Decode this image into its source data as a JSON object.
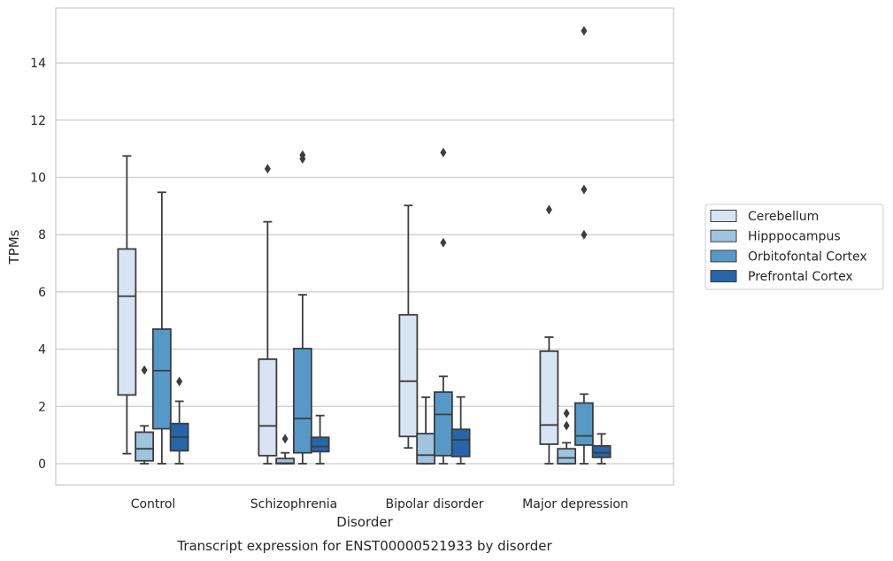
{
  "chart_data": {
    "type": "boxplot",
    "title": "",
    "caption": "Transcript expression for ENST00000521933 by disorder",
    "xlabel": "Disorder",
    "ylabel": "TPMs",
    "ylim": [
      -0.75,
      15.9
    ],
    "yticks": [
      0,
      2,
      4,
      6,
      8,
      10,
      12,
      14
    ],
    "grid": "horizontal",
    "legend_position": "right",
    "categories": [
      "Control",
      "Schizophrenia",
      "Bipolar disorder",
      "Major depression"
    ],
    "series": [
      {
        "name": "Cerebellum",
        "color": "#d6e4f3",
        "boxes": [
          {
            "whislo": 0.35,
            "q1": 2.4,
            "med": 5.85,
            "q3": 7.5,
            "whishi": 10.75,
            "fliers": []
          },
          {
            "whislo": 0.0,
            "q1": 0.28,
            "med": 1.32,
            "q3": 3.65,
            "whishi": 8.45,
            "fliers": [
              10.3
            ]
          },
          {
            "whislo": 0.55,
            "q1": 0.95,
            "med": 2.88,
            "q3": 5.2,
            "whishi": 9.02,
            "fliers": []
          },
          {
            "whislo": 0.0,
            "q1": 0.68,
            "med": 1.35,
            "q3": 3.93,
            "whishi": 4.42,
            "fliers": [
              8.87
            ]
          }
        ]
      },
      {
        "name": "Hipppocampus",
        "color": "#9ec4de",
        "boxes": [
          {
            "whislo": 0.0,
            "q1": 0.1,
            "med": 0.52,
            "q3": 1.1,
            "whishi": 1.32,
            "fliers": [
              3.27
            ]
          },
          {
            "whislo": 0.0,
            "q1": 0.0,
            "med": 0.02,
            "q3": 0.18,
            "whishi": 0.38,
            "fliers": [
              0.87
            ]
          },
          {
            "whislo": 0.0,
            "q1": 0.0,
            "med": 0.3,
            "q3": 1.05,
            "whishi": 2.32,
            "fliers": []
          },
          {
            "whislo": 0.0,
            "q1": 0.0,
            "med": 0.2,
            "q3": 0.52,
            "whishi": 0.73,
            "fliers": [
              1.33,
              1.76
            ]
          }
        ]
      },
      {
        "name": "Orbitofontal Cortex",
        "color": "#5799c6",
        "boxes": [
          {
            "whislo": 0.0,
            "q1": 1.22,
            "med": 3.25,
            "q3": 4.7,
            "whishi": 9.48,
            "fliers": []
          },
          {
            "whislo": 0.0,
            "q1": 0.38,
            "med": 1.58,
            "q3": 4.02,
            "whishi": 5.9,
            "fliers": [
              10.65,
              10.78
            ]
          },
          {
            "whislo": 0.0,
            "q1": 0.28,
            "med": 1.72,
            "q3": 2.5,
            "whishi": 3.05,
            "fliers": [
              7.72,
              10.87
            ]
          },
          {
            "whislo": 0.0,
            "q1": 0.65,
            "med": 0.97,
            "q3": 2.12,
            "whishi": 2.43,
            "fliers": [
              8.0,
              9.58,
              15.12
            ]
          }
        ]
      },
      {
        "name": "Prefrontal Cortex",
        "color": "#2565a9",
        "boxes": [
          {
            "whislo": 0.0,
            "q1": 0.45,
            "med": 0.93,
            "q3": 1.4,
            "whishi": 2.18,
            "fliers": [
              2.87
            ]
          },
          {
            "whislo": 0.0,
            "q1": 0.42,
            "med": 0.6,
            "q3": 0.92,
            "whishi": 1.68,
            "fliers": []
          },
          {
            "whislo": 0.0,
            "q1": 0.25,
            "med": 0.83,
            "q3": 1.2,
            "whishi": 2.33,
            "fliers": []
          },
          {
            "whislo": 0.0,
            "q1": 0.22,
            "med": 0.38,
            "q3": 0.62,
            "whishi": 1.04,
            "fliers": []
          }
        ]
      }
    ]
  }
}
